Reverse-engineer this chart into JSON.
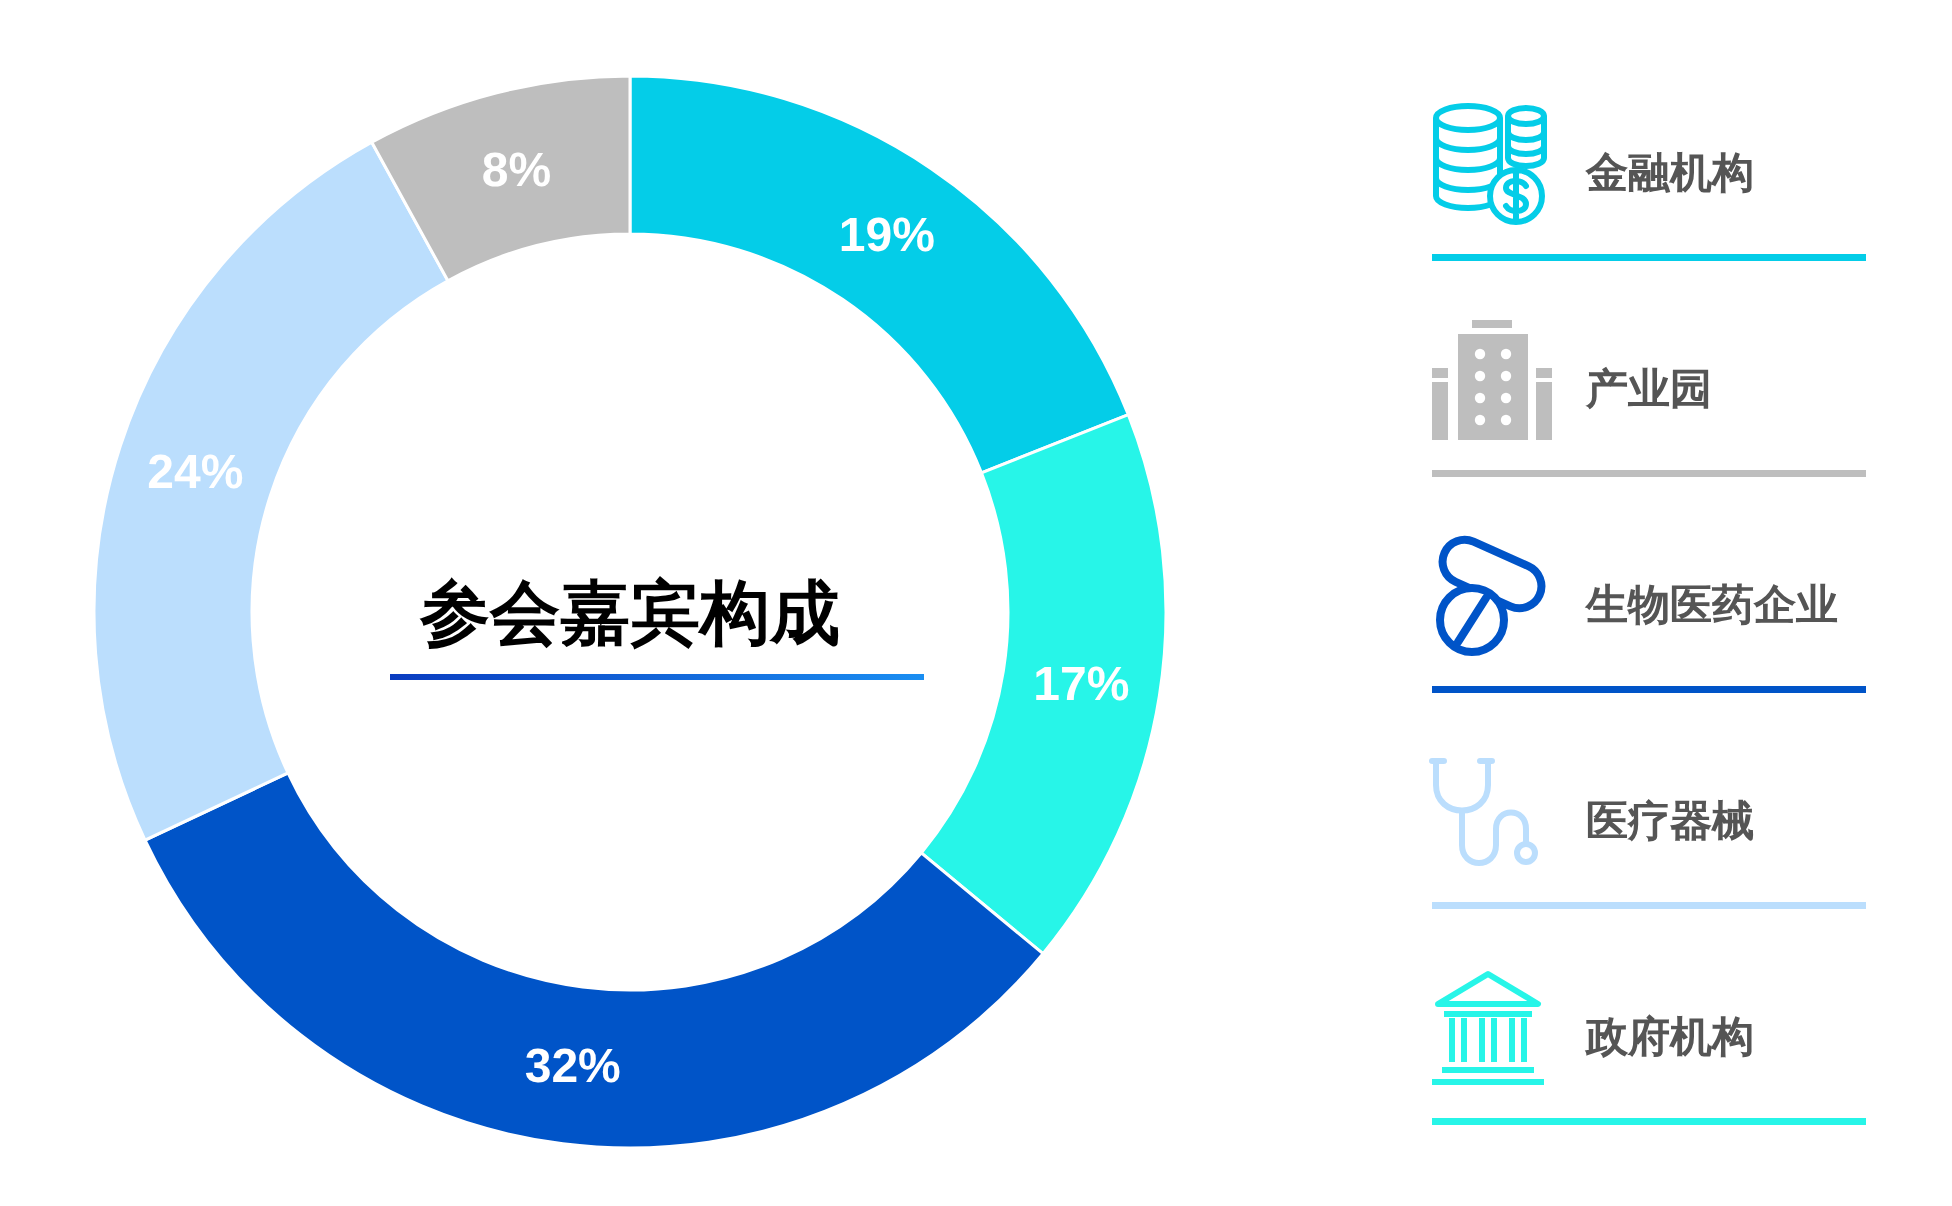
{
  "chart_data": {
    "type": "donut",
    "title": "参会嘉宾构成",
    "categories": [
      "金融机构",
      "产业园",
      "生物医药企业",
      "医疗器械",
      "政府机构"
    ],
    "values": [
      19,
      8,
      32,
      24,
      17
    ],
    "colors": [
      "#04cde8",
      "#bebebe",
      "#0054c8",
      "#bbdefd",
      "#27f5e8"
    ],
    "value_labels": [
      "19%",
      "8%",
      "32%",
      "24%",
      "17%"
    ],
    "legend": "right"
  }
}
